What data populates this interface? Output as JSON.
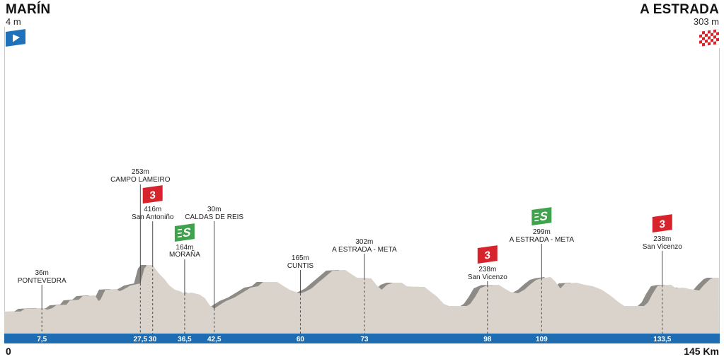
{
  "start": {
    "name": "MARÍN",
    "elevation": "4 m",
    "icon": "start-flag-icon"
  },
  "finish": {
    "name": "A ESTRADA",
    "elevation": "303 m",
    "icon": "finish-flag-icon"
  },
  "colors": {
    "profile_fill": "#d9d3cb",
    "climb_shade": "#8e8b86",
    "distance_bar": "#1e6db3",
    "climb_flag": "#d7232b",
    "sprint_flag": "#3fa24c",
    "start_flag": "#1f72b9",
    "finish_flag": "#d7232b",
    "marker_line": "#4a4a4a",
    "frame_line": "#c9c9c9"
  },
  "chart_data": {
    "type": "area",
    "xlim": [
      0,
      145
    ],
    "x_start_label": "0",
    "x_end_label": "145 Km",
    "profile": [
      [
        0,
        4
      ],
      [
        3.2,
        5
      ],
      [
        4,
        29
      ],
      [
        7.2,
        35
      ],
      [
        7.5,
        36
      ],
      [
        8.6,
        22
      ],
      [
        9.6,
        35
      ],
      [
        10.4,
        60
      ],
      [
        12.5,
        66
      ],
      [
        13.2,
        104
      ],
      [
        15,
        110
      ],
      [
        15.8,
        141
      ],
      [
        18.3,
        148
      ],
      [
        19,
        98
      ],
      [
        19.4,
        110
      ],
      [
        20.4,
        198
      ],
      [
        22.6,
        204
      ],
      [
        23.3,
        185
      ],
      [
        24,
        198
      ],
      [
        25.5,
        235
      ],
      [
        26.9,
        248
      ],
      [
        27.5,
        253
      ],
      [
        28.3,
        385
      ],
      [
        28.9,
        416
      ],
      [
        30,
        416
      ],
      [
        30.5,
        385
      ],
      [
        31.4,
        335
      ],
      [
        32.4,
        291
      ],
      [
        33.4,
        235
      ],
      [
        34.5,
        198
      ],
      [
        35.5,
        185
      ],
      [
        36.5,
        164
      ],
      [
        38,
        172
      ],
      [
        39.6,
        154
      ],
      [
        40.6,
        123
      ],
      [
        41.6,
        60
      ],
      [
        42.5,
        30
      ],
      [
        43.5,
        60
      ],
      [
        44.9,
        98
      ],
      [
        46.6,
        129
      ],
      [
        48.5,
        179
      ],
      [
        49.9,
        216
      ],
      [
        51.4,
        229
      ],
      [
        52.4,
        266
      ],
      [
        55.3,
        266
      ],
      [
        56.4,
        235
      ],
      [
        57.8,
        198
      ],
      [
        59,
        179
      ],
      [
        60,
        165
      ],
      [
        61.2,
        185
      ],
      [
        62.3,
        210
      ],
      [
        63.6,
        260
      ],
      [
        65,
        310
      ],
      [
        66.5,
        366
      ],
      [
        69.1,
        373
      ],
      [
        70.4,
        335
      ],
      [
        71.5,
        304
      ],
      [
        73,
        302
      ],
      [
        74.4,
        298
      ],
      [
        75.4,
        241
      ],
      [
        76.5,
        198
      ],
      [
        77.6,
        241
      ],
      [
        78.8,
        260
      ],
      [
        80.6,
        260
      ],
      [
        81.6,
        229
      ],
      [
        83,
        223
      ],
      [
        85.2,
        223
      ],
      [
        86.3,
        185
      ],
      [
        87.8,
        135
      ],
      [
        89.1,
        73
      ],
      [
        90.2,
        54
      ],
      [
        93.8,
        54
      ],
      [
        94.5,
        73
      ],
      [
        95.5,
        135
      ],
      [
        96.5,
        210
      ],
      [
        98,
        238
      ],
      [
        100.3,
        241
      ],
      [
        101.4,
        210
      ],
      [
        102.7,
        179
      ],
      [
        104.2,
        166
      ],
      [
        105.5,
        198
      ],
      [
        106.8,
        248
      ],
      [
        107.9,
        285
      ],
      [
        109,
        299
      ],
      [
        110.8,
        310
      ],
      [
        111.7,
        273
      ],
      [
        112.8,
        210
      ],
      [
        113.8,
        254
      ],
      [
        116.1,
        260
      ],
      [
        117.7,
        241
      ],
      [
        119.4,
        229
      ],
      [
        121.2,
        198
      ],
      [
        122.9,
        148
      ],
      [
        124.7,
        85
      ],
      [
        125.8,
        54
      ],
      [
        129.8,
        54
      ],
      [
        130.6,
        85
      ],
      [
        131.5,
        160
      ],
      [
        132.5,
        229
      ],
      [
        133.5,
        238
      ],
      [
        135.3,
        241
      ],
      [
        136.3,
        210
      ],
      [
        137.7,
        216
      ],
      [
        139.1,
        204
      ],
      [
        141,
        191
      ],
      [
        142,
        241
      ],
      [
        143.2,
        291
      ],
      [
        143.9,
        304
      ],
      [
        145,
        303
      ]
    ],
    "ticks": [
      {
        "km": 7.5,
        "label": "7,5"
      },
      {
        "km": 27.5,
        "label": "27,5"
      },
      {
        "km": 30,
        "label": "30"
      },
      {
        "km": 36.5,
        "label": "36,5"
      },
      {
        "km": 42.5,
        "label": "42,5"
      },
      {
        "km": 60,
        "label": "60"
      },
      {
        "km": 73,
        "label": "73"
      },
      {
        "km": 98,
        "label": "98"
      },
      {
        "km": 109,
        "label": "109"
      },
      {
        "km": 133.5,
        "label": "133,5"
      }
    ],
    "markers": [
      {
        "km": 7.5,
        "elevation": "36m",
        "name": "PONTEVEDRA"
      },
      {
        "km": 27.5,
        "elevation": "253m",
        "name": "CAMPO LAMEIRO"
      },
      {
        "km": 30,
        "elevation": "416m",
        "name": "San Antoniño",
        "badge": "3",
        "icon": "climb-flag-icon"
      },
      {
        "km": 36.5,
        "elevation": "164m",
        "name": "MORAÑA",
        "badge": "S",
        "icon": "sprint-flag-icon"
      },
      {
        "km": 42.5,
        "elevation": "30m",
        "name": "CALDAS DE REIS"
      },
      {
        "km": 60,
        "elevation": "165m",
        "name": "CUNTIS"
      },
      {
        "km": 73,
        "elevation": "302m",
        "name": "A ESTRADA - META"
      },
      {
        "km": 98,
        "elevation": "238m",
        "name": "San Vicenzo",
        "badge": "3",
        "icon": "climb-flag-icon"
      },
      {
        "km": 109,
        "elevation": "299m",
        "name": "A ESTRADA - META",
        "badge": "S",
        "icon": "sprint-flag-icon"
      },
      {
        "km": 133.5,
        "elevation": "238m",
        "name": "San Vicenzo",
        "badge": "3",
        "icon": "climb-flag-icon"
      }
    ]
  }
}
